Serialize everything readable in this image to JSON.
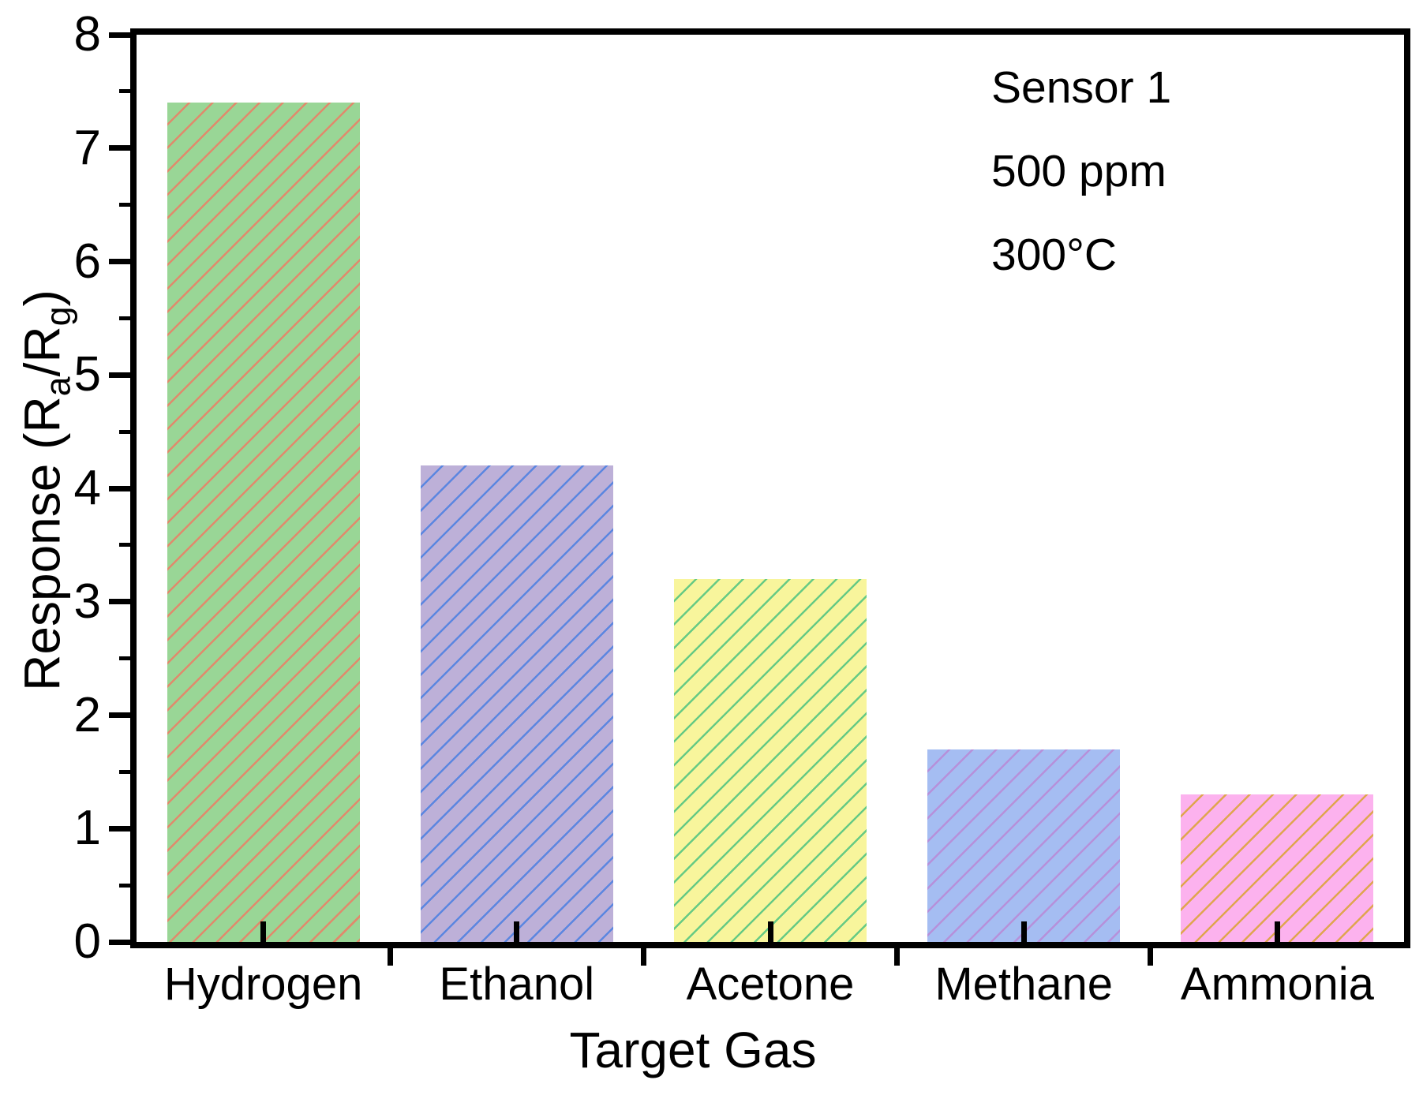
{
  "chart_data": {
    "type": "bar",
    "title": "",
    "xlabel": "Target Gas",
    "ylabel": "Response (Ra/Rg)",
    "ylabel_segments": [
      {
        "text": "Response (R",
        "sub": false
      },
      {
        "text": "a",
        "sub": true
      },
      {
        "text": "/R",
        "sub": false
      },
      {
        "text": "g",
        "sub": true
      },
      {
        "text": ")",
        "sub": false
      }
    ],
    "categories": [
      "Hydrogen",
      "Ethanol",
      "Acetone",
      "Methane",
      "Ammonia"
    ],
    "values": [
      7.4,
      4.2,
      3.2,
      1.7,
      1.3
    ],
    "series_name": "Sensor 1 response",
    "ylim": [
      0,
      8
    ],
    "ytick_step": 1,
    "yminor_step": 0.5,
    "grid": "off",
    "legend": "none",
    "annotation_lines": [
      "Sensor 1",
      "500 ppm",
      "300°C"
    ],
    "bar_fill_colors": [
      "#99d696",
      "#bdb0d8",
      "#f8f59c",
      "#a5bdf2",
      "#fcb2ee"
    ],
    "bar_hatch_colors": [
      "#e08a6c",
      "#5b86e0",
      "#66ca84",
      "#b690da",
      "#dfa54e"
    ],
    "hatch_pattern": "forward-diagonal",
    "axis_color": "#000000",
    "background_color": "#ffffff"
  }
}
